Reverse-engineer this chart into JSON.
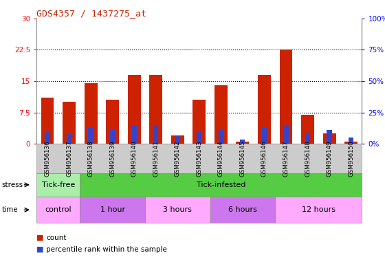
{
  "title": "GDS4357 / 1437275_at",
  "samples": [
    "GSM956136",
    "GSM956137",
    "GSM956138",
    "GSM956139",
    "GSM956140",
    "GSM956141",
    "GSM956142",
    "GSM956143",
    "GSM956144",
    "GSM956145",
    "GSM956146",
    "GSM956147",
    "GSM956148",
    "GSM956149",
    "GSM956150"
  ],
  "count_values": [
    11.0,
    10.0,
    14.5,
    10.5,
    16.5,
    16.5,
    2.0,
    10.5,
    14.0,
    0.5,
    16.5,
    22.5,
    7.0,
    2.5,
    0.5
  ],
  "percentile_values": [
    10.0,
    8.0,
    13.0,
    11.0,
    15.0,
    15.0,
    7.0,
    10.0,
    11.0,
    3.5,
    13.0,
    15.0,
    9.0,
    11.0,
    5.0
  ],
  "ylim_left": [
    0,
    30
  ],
  "ylim_right": [
    0,
    100
  ],
  "yticks_left": [
    0,
    7.5,
    15,
    22.5,
    30
  ],
  "ytick_labels_left": [
    "0",
    "7.5",
    "15",
    "22.5",
    "30"
  ],
  "yticks_right": [
    0,
    25,
    50,
    75,
    100
  ],
  "ytick_labels_right": [
    "0%",
    "25%",
    "50%",
    "75%",
    "100%"
  ],
  "bar_color_red": "#cc2200",
  "bar_color_blue": "#3344cc",
  "plot_bg": "#ffffff",
  "stress_colors": [
    "#aaeeaa",
    "#55cc44"
  ],
  "stress_groups": [
    {
      "label": "Tick-free",
      "start": 0,
      "end": 2
    },
    {
      "label": "Tick-infested",
      "start": 2,
      "end": 15
    }
  ],
  "time_colors": [
    "#ffaaff",
    "#cc77ee",
    "#ffaaff",
    "#cc77ee",
    "#ffaaff"
  ],
  "time_groups": [
    {
      "label": "control",
      "start": 0,
      "end": 2
    },
    {
      "label": "1 hour",
      "start": 2,
      "end": 5
    },
    {
      "label": "3 hours",
      "start": 5,
      "end": 8
    },
    {
      "label": "6 hours",
      "start": 8,
      "end": 11
    },
    {
      "label": "12 hours",
      "start": 11,
      "end": 15
    }
  ],
  "stress_label": "stress",
  "time_label": "time",
  "legend_count": "count",
  "legend_percentile": "percentile rank within the sample",
  "xtick_bg": "#cccccc"
}
